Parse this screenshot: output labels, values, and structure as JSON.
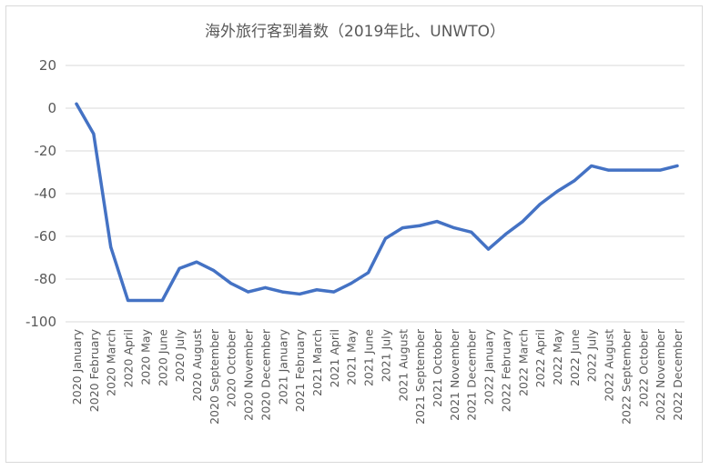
{
  "chart_data": {
    "type": "line",
    "title": "海外旅行客到着数（2019年比、UNWTO）",
    "xlabel": "",
    "ylabel": "",
    "ylim": [
      -100,
      20
    ],
    "yticks": [
      20,
      0,
      -20,
      -40,
      -60,
      -80,
      -100
    ],
    "grid": true,
    "line_color": "#4472c4",
    "categories": [
      "2020 January",
      "2020 February",
      "2020 March",
      "2020 April",
      "2020 May",
      "2020 June",
      "2020 July",
      "2020 August",
      "2020 September",
      "2020 October",
      "2020 November",
      "2020 December",
      "2021 January",
      "2021 February",
      "2021 March",
      "2021 April",
      "2021 May",
      "2021 June",
      "2021 July",
      "2021 August",
      "2021 September",
      "2021 October",
      "2021 November",
      "2021 December",
      "2022 January",
      "2022 February",
      "2022 March",
      "2022 April",
      "2022 May",
      "2022 June",
      "2022 July",
      "2022 August",
      "2022 September",
      "2022 October",
      "2022 November",
      "2022 December"
    ],
    "series": [
      {
        "values": [
          2,
          -12,
          -65,
          -90,
          -90,
          -90,
          -75,
          -72,
          -76,
          -82,
          -86,
          -84,
          -86,
          -87,
          -85,
          -86,
          -82,
          -77,
          -61,
          -56,
          -55,
          -53,
          -56,
          -58,
          -66,
          -59,
          -53,
          -45,
          -39,
          -34,
          -27,
          -29,
          -29,
          -29,
          -29,
          -27
        ]
      }
    ]
  }
}
